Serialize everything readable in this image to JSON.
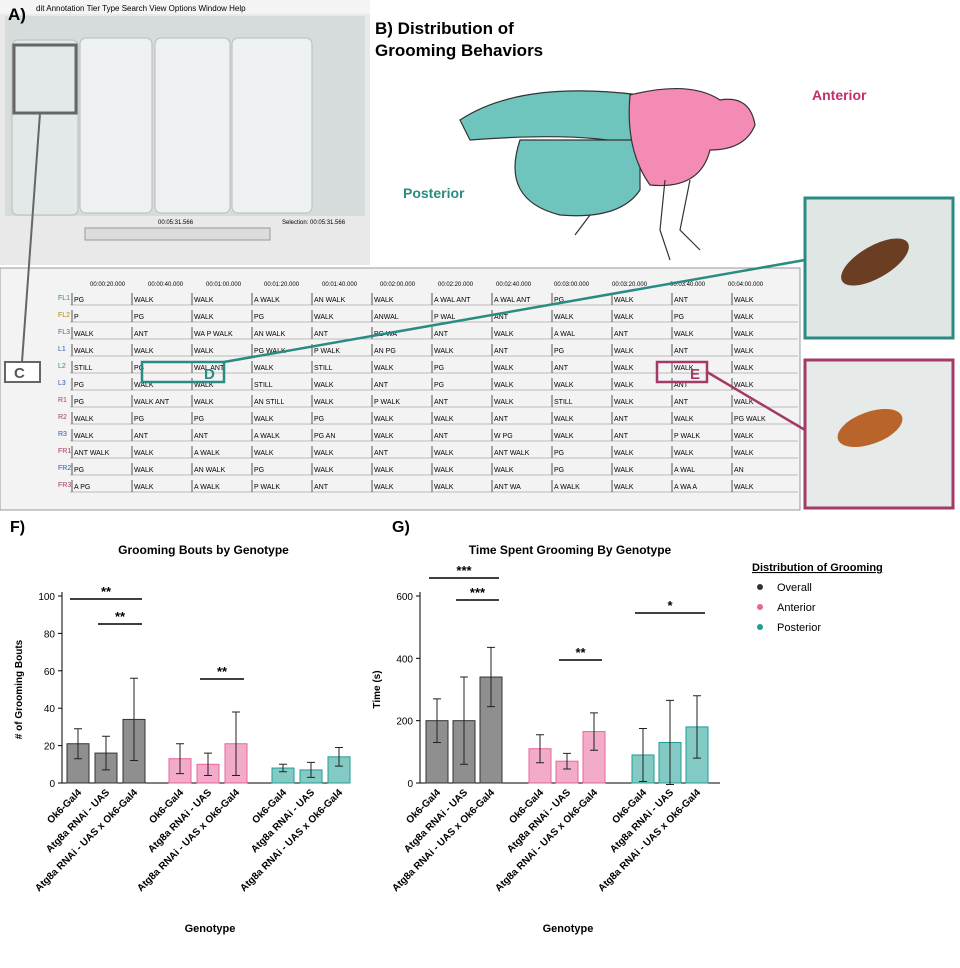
{
  "panel_a": {
    "label": "A)",
    "menu": "dit   Annotation   Tier   Type   Search   View   Options   Window   Help",
    "time": "00:05:31.566",
    "selection": "Selection: 00:05:31.566"
  },
  "panel_b": {
    "title_line1": "B) Distribution of",
    "title_line2": "Grooming Behaviors",
    "anterior": "Anterior",
    "posterior": "Posterior"
  },
  "callouts": {
    "c": "C",
    "d": "D",
    "e": "E"
  },
  "timeline": [
    "00:00:20.000",
    "00:00:40.000",
    "00:01:00.000",
    "00:01:20.000",
    "00:01:40.000",
    "00:02:00.000",
    "00:02:20.000",
    "00:02:40.000",
    "00:03:00.000",
    "00:03:20.000",
    "00:03:40.000",
    "00:04:00.000"
  ],
  "tiers": [
    {
      "name": "FL1",
      "labels": [
        "PG",
        "WALK",
        "WALK",
        "A WALK",
        "AN WALK",
        "WALK",
        "A WAL ANT",
        "A WAL ANT",
        "PG",
        "WALK",
        "ANT",
        "WALK"
      ]
    },
    {
      "name": "FL2",
      "labels": [
        "P",
        "PG",
        "WALK",
        "PG",
        "WALK",
        "ANWAL",
        "P WAL",
        "ANT",
        "WALK",
        "WALK",
        "PG",
        "WALK"
      ]
    },
    {
      "name": "FL3",
      "labels": [
        "WALK",
        "ANT",
        "WA P WALK",
        "AN WALK",
        "ANT",
        "PG WA",
        "ANT",
        "WALK",
        "A WAL",
        "ANT",
        "WALK",
        "WALK"
      ]
    },
    {
      "name": "L1",
      "labels": [
        "WALK",
        "WALK",
        "WALK",
        "PG WALK",
        "P WALK",
        "AN PG",
        "WALK",
        "ANT",
        "PG",
        "WALK",
        "ANT",
        "WALK"
      ]
    },
    {
      "name": "L2",
      "labels": [
        "STILL",
        "PG",
        "WAL ANT",
        "WALK",
        "STILL",
        "WALK",
        "PG",
        "WALK",
        "ANT",
        "WALK",
        "WALK",
        "WALK"
      ]
    },
    {
      "name": "L3",
      "labels": [
        "PG",
        "WALK",
        "WALK",
        "STILL",
        "WALK",
        "ANT",
        "PG",
        "WALK",
        "WALK",
        "WALK",
        "ANT",
        "WALK"
      ]
    },
    {
      "name": "R1",
      "labels": [
        "PG",
        "WALK ANT",
        "WALK",
        "AN STILL",
        "WALK",
        "P WALK",
        "ANT",
        "WALK",
        "STILL",
        "WALK",
        "ANT",
        "WALK"
      ]
    },
    {
      "name": "R2",
      "labels": [
        "WALK",
        "PG",
        "PG",
        "WALK",
        "PG",
        "WALK",
        "WALK",
        "ANT",
        "WALK",
        "ANT",
        "WALK",
        "PG WALK"
      ]
    },
    {
      "name": "R3",
      "labels": [
        "WALK",
        "ANT",
        "ANT",
        "A WALK",
        "PG AN",
        "WALK",
        "ANT",
        "W PG",
        "WALK",
        "ANT",
        "P WALK",
        "WALK"
      ]
    },
    {
      "name": "FR1",
      "labels": [
        "ANT WALK",
        "WALK",
        "A WALK",
        "WALK",
        "WALK",
        "ANT",
        "WALK",
        "ANT WALK",
        "PG",
        "WALK",
        "WALK",
        "WALK"
      ]
    },
    {
      "name": "FR2",
      "labels": [
        "PG",
        "WALK",
        "AN WALK",
        "PG",
        "WALK",
        "WALK",
        "WALK",
        "WALK",
        "PG",
        "WALK",
        "A WAL",
        "AN"
      ]
    },
    {
      "name": "FR3",
      "labels": [
        "A PG",
        "WALK",
        "A WALK",
        "P WALK",
        "ANT",
        "WALK",
        "WALK",
        "ANT WA",
        "A WALK",
        "WALK",
        "A WA A",
        "WALK"
      ]
    }
  ],
  "legend": {
    "title": "Distribution of Grooming"
  },
  "chart_data": [
    {
      "type": "bar",
      "panel": "F)",
      "title": "Grooming Bouts by Genotype",
      "xlabel": "Genotype",
      "ylabel": "# of Grooming Bouts",
      "categories": [
        "Ok6-Gal4",
        "Atg8a RNAi - UAS",
        "Atg8a RNAi - UAS x Ok6-Gal4"
      ],
      "series": [
        {
          "name": "Overall",
          "color": "#333333",
          "values": [
            21,
            16,
            34
          ],
          "errors": [
            8,
            9,
            22
          ]
        },
        {
          "name": "Anterior",
          "color": "#e8669a",
          "values": [
            13,
            10,
            21
          ],
          "errors": [
            8,
            6,
            17
          ]
        },
        {
          "name": "Posterior",
          "color": "#1f9e94",
          "values": [
            8,
            7,
            14
          ],
          "errors": [
            2,
            4,
            5
          ]
        }
      ],
      "ylim": [
        0,
        100
      ],
      "yticks": [
        0,
        20,
        40,
        60,
        80,
        100
      ],
      "annotations": [
        "**",
        "**",
        "**"
      ]
    },
    {
      "type": "bar",
      "panel": "G)",
      "title": "Time Spent Grooming By Genotype",
      "xlabel": "Genotype",
      "ylabel": "Time (s)",
      "categories": [
        "Ok6-Gal4",
        "Atg8a RNAi - UAS",
        "Atg8a RNAi - UAS x Ok6-Gal4"
      ],
      "series": [
        {
          "name": "Overall",
          "color": "#333333",
          "values": [
            200,
            200,
            340
          ],
          "errors": [
            70,
            140,
            95
          ]
        },
        {
          "name": "Anterior",
          "color": "#e8669a",
          "values": [
            110,
            70,
            165
          ],
          "errors": [
            45,
            25,
            60
          ]
        },
        {
          "name": "Posterior",
          "color": "#1f9e94",
          "values": [
            90,
            130,
            180
          ],
          "errors": [
            85,
            135,
            100
          ]
        }
      ],
      "ylim": [
        0,
        600
      ],
      "yticks": [
        0,
        200,
        400,
        600
      ],
      "annotations": [
        "***",
        "***",
        "**",
        "*"
      ]
    }
  ]
}
